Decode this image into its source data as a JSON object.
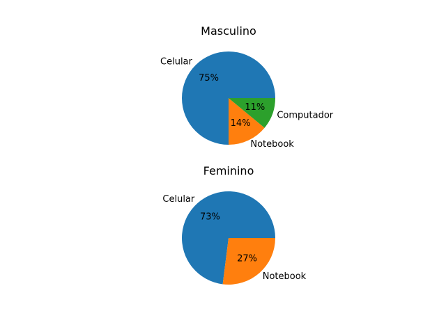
{
  "chart_data": [
    {
      "type": "pie",
      "title": "Masculino",
      "slices": [
        {
          "label": "Celular",
          "value": 75,
          "pct_label": "75%",
          "color": "#1f77b4"
        },
        {
          "label": "Notebook",
          "value": 14,
          "pct_label": "14%",
          "color": "#ff7f0e"
        },
        {
          "label": "Computador",
          "value": 11,
          "pct_label": "11%",
          "color": "#2ca02c"
        }
      ],
      "start_angle_deg": 0,
      "direction": "counterclockwise"
    },
    {
      "type": "pie",
      "title": "Feminino",
      "slices": [
        {
          "label": "Celular",
          "value": 73,
          "pct_label": "73%",
          "color": "#1f77b4"
        },
        {
          "label": "Notebook",
          "value": 27,
          "pct_label": "27%",
          "color": "#ff7f0e"
        }
      ],
      "start_angle_deg": 0,
      "direction": "counterclockwise"
    }
  ]
}
